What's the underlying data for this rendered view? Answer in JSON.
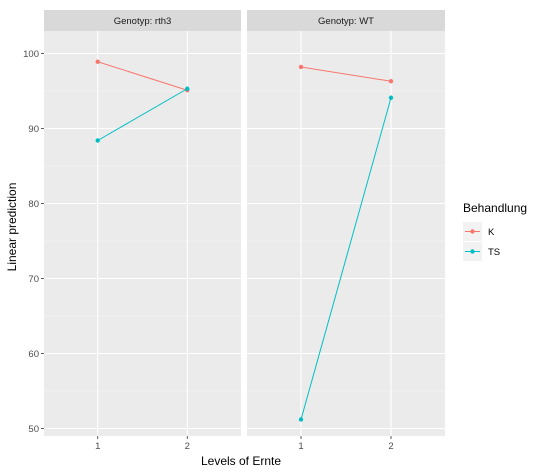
{
  "chart_data": {
    "type": "line",
    "facet_label_prefix": "Genotyp: ",
    "facets": [
      "rth3",
      "WT"
    ],
    "categories": [
      "1",
      "2"
    ],
    "xlabel": "Levels of Ernte",
    "ylabel": "Linear prediction",
    "ylim": [
      49,
      103
    ],
    "yticks": [
      50,
      60,
      70,
      80,
      90,
      100
    ],
    "grid": true,
    "legend": {
      "title": "Behandlung",
      "position": "right"
    },
    "series": [
      {
        "name": "K",
        "color": "#F8766D",
        "values": {
          "rth3": [
            98.9,
            95.1
          ],
          "WT": [
            98.2,
            96.3
          ]
        }
      },
      {
        "name": "TS",
        "color": "#00BFC4",
        "values": {
          "rth3": [
            88.4,
            95.3
          ],
          "WT": [
            51.2,
            94.1
          ]
        }
      }
    ]
  }
}
